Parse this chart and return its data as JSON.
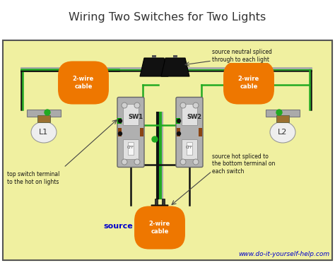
{
  "title": "Wiring Two Switches for Two Lights",
  "bg_color": "#f0f0a0",
  "border_color": "#555555",
  "title_color": "#333333",
  "title_fontsize": 11.5,
  "subtitle_url": "www.do-it-yourself-help.com",
  "subtitle_color": "#0000cc",
  "subtitle_fontsize": 6.5,
  "label_L1": "L1",
  "label_L2": "L2",
  "label_SW1": "SW1",
  "label_SW2": "SW2",
  "label_source": "source",
  "orange_label": "2-wire\ncable",
  "annotation1": "source neutral spliced\nthrough to each light",
  "annotation2": "top switch terminal\nto the hot on lights",
  "annotation3": "source hot spliced to\nthe bottom terminal on\neach switch",
  "wire_black": "#111111",
  "wire_green": "#22aa22",
  "wire_gray": "#aaaaaa",
  "orange_bg": "#ee7700",
  "fig_w": 4.74,
  "fig_h": 3.72,
  "dpi": 100
}
